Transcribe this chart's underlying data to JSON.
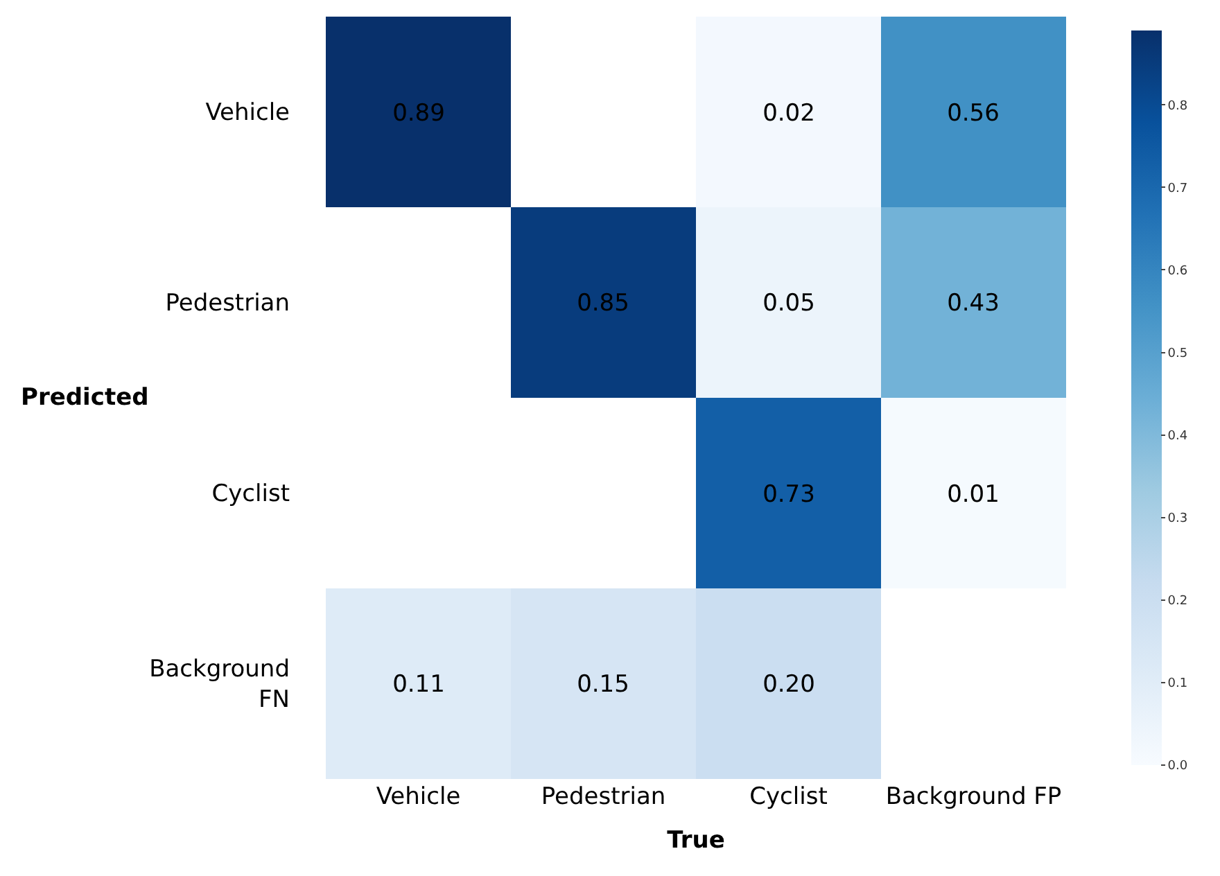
{
  "chart_data": {
    "type": "heatmap",
    "xlabel": "True",
    "ylabel": "Predicted",
    "categories": [
      "Vehicle",
      "Pedestrian",
      "Cyclist",
      "Background FP"
    ],
    "y_categories": [
      "Vehicle",
      "Pedestrian",
      "Cyclist",
      "Background\nFN"
    ],
    "cells": [
      [
        0.89,
        null,
        0.02,
        0.56
      ],
      [
        null,
        0.85,
        0.05,
        0.43
      ],
      [
        null,
        null,
        0.73,
        0.01
      ],
      [
        0.11,
        0.15,
        0.2,
        null
      ]
    ],
    "cell_labels": [
      [
        "0.89",
        null,
        "0.02",
        "0.56"
      ],
      [
        null,
        "0.85",
        "0.05",
        "0.43"
      ],
      [
        null,
        null,
        "0.73",
        "0.01"
      ],
      [
        "0.11",
        "0.15",
        "0.20",
        null
      ]
    ],
    "clim": [
      0,
      0.89
    ],
    "cticks": [
      {
        "value": 0,
        "label": "0.0"
      },
      0.1,
      0.2,
      0.3,
      0.4,
      0.5,
      0.6,
      0.7,
      0.8
    ]
  }
}
